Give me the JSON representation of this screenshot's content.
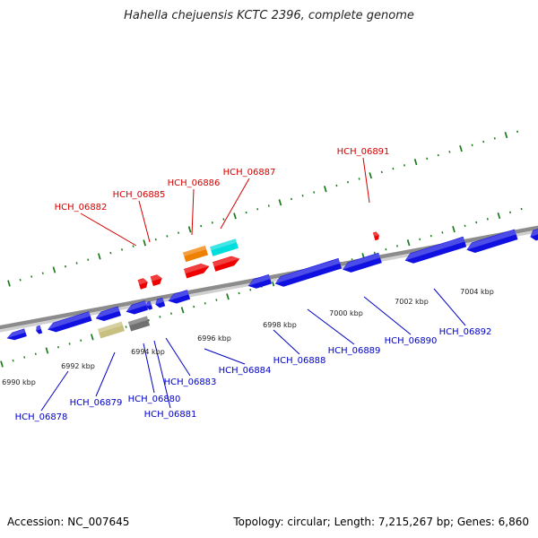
{
  "title": "Hahella chejuensis KCTC 2396, complete genome",
  "footer": {
    "accession": "Accession: NC_007645",
    "summary": "Topology: circular; Length: 7,215,267 bp; Genes: 6,860"
  },
  "colors": {
    "backbone": "#8c8c8c",
    "tick": "#1a7a1a",
    "forward_label": "#d40000",
    "reverse_label": "#0000c8",
    "gene_blue": "#1010e0",
    "gene_red": "#ee0000",
    "gene_orange": "#f08000",
    "gene_cyan": "#00dddd",
    "gene_khaki": "#c8c080",
    "gene_gray": "#707070"
  },
  "scale_labels": [
    "6990 kbp",
    "6992 kbp",
    "6994 kbp",
    "6996 kbp",
    "6998 kbp",
    "7000 kbp",
    "7002 kbp",
    "7004 kbp"
  ],
  "forward_genes": [
    "HCH_06882",
    "HCH_06885",
    "HCH_06886",
    "HCH_06887",
    "HCH_06891"
  ],
  "reverse_genes": [
    "HCH_06878",
    "HCH_06879",
    "HCH_06880",
    "HCH_06881",
    "HCH_06883",
    "HCH_06884",
    "HCH_06888",
    "HCH_06889",
    "HCH_06890",
    "HCH_06892"
  ]
}
